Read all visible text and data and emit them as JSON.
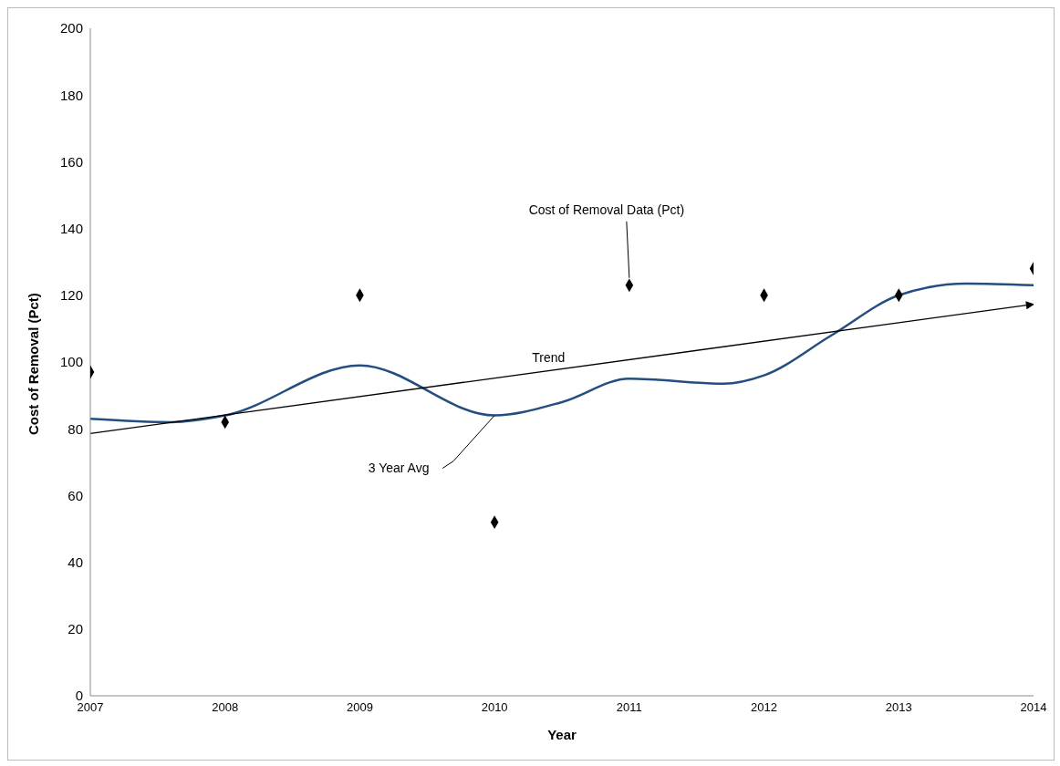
{
  "chart_data": {
    "type": "scatter",
    "xlabel": "Year",
    "ylabel": "Cost of Removal (Pct)",
    "xlim": [
      2007,
      2014
    ],
    "xticks": [
      2007,
      2008,
      2009,
      2010,
      2011,
      2012,
      2013,
      2014
    ],
    "ylim": [
      0,
      200
    ],
    "yticks": [
      0,
      20,
      40,
      60,
      80,
      100,
      120,
      140,
      160,
      180,
      200
    ],
    "grid": false,
    "series": [
      {
        "marker": "diamond",
        "color": "#000000",
        "x": [
          2007,
          2008,
          2009,
          2010,
          2011,
          2012,
          2013,
          2014
        ],
        "values": [
          97,
          82,
          120,
          52,
          123,
          120,
          120,
          128
        ]
      },
      {
        "type": "line",
        "marker": "none",
        "line_style": "solid",
        "color": "#254e80",
        "x": [
          2007,
          2007.6,
          2008,
          2009,
          2010,
          2010.5,
          2011,
          2011.7,
          2012,
          2012.5,
          2013,
          2013.5,
          2014
        ],
        "values": [
          83,
          82,
          84,
          99,
          84,
          88,
          95,
          93.5,
          96,
          108,
          120,
          123.5,
          123
        ]
      },
      {
        "type": "line",
        "marker": "none",
        "line_style": "solid",
        "color": "#000000",
        "x": [
          2007,
          2014
        ],
        "values": [
          78.6,
          117.3
        ]
      }
    ],
    "annotations": [
      {
        "text": "Cost of Removal Data (Pct)",
        "x": 2011,
        "y": 123
      },
      {
        "text": "3 Year Avg",
        "x": 2010,
        "y": 84
      },
      {
        "text": "Trend",
        "x": 2010.4,
        "y": 97.3
      }
    ]
  }
}
